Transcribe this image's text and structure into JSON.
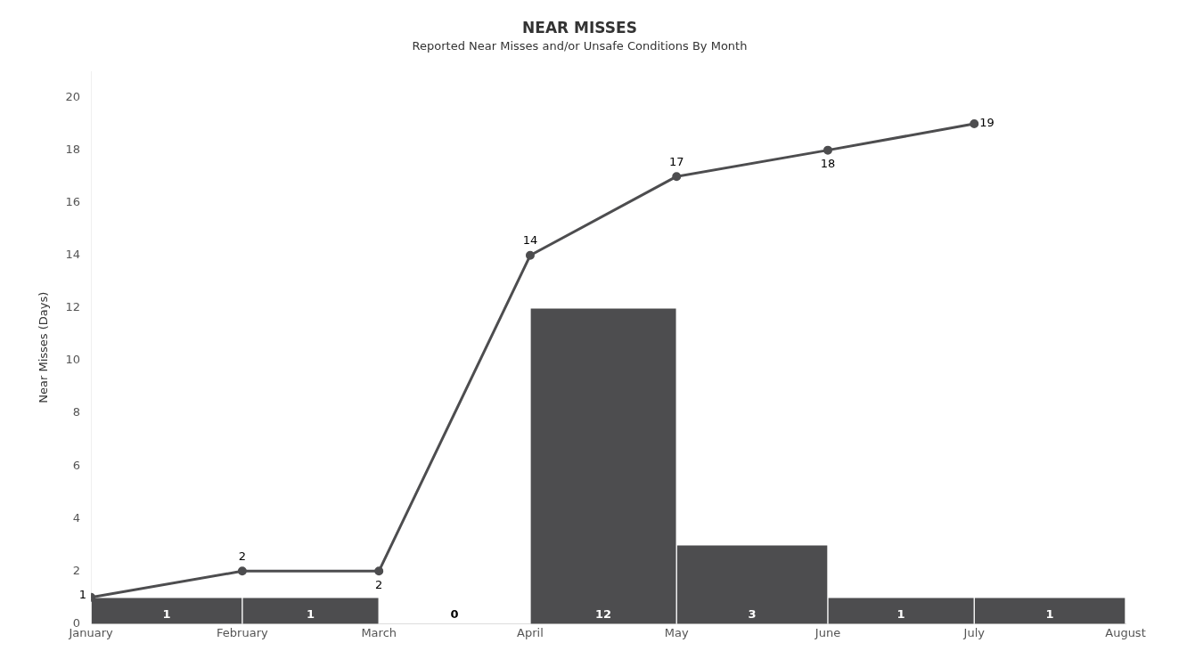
{
  "chart_data": {
    "type": "histogram",
    "title": "NEAR MISSES",
    "subtitle": "Reported Near Misses and/or Unsafe Conditions By Month",
    "ylabel": "Near Misses (Days)",
    "series": [
      {
        "color": "#4d4d4f",
        "bins": [
          "--01-01",
          "--02-01",
          "--03-01",
          "--04-01",
          "--05-01",
          "--06-01",
          "--07-01",
          "--08-01"
        ],
        "values": [
          1,
          1,
          0,
          12,
          3,
          1,
          1
        ]
      },
      {
        "type": "line",
        "color": "#4d4d4f",
        "x": [
          "--01-01",
          "--02-01",
          "--03-01",
          "--04-01",
          "--05-01",
          "--06-01",
          "--07-01"
        ],
        "values": [
          1,
          2,
          2,
          14,
          17,
          18,
          19
        ]
      }
    ],
    "xlim": [
      "--01-01",
      "--08-01"
    ],
    "xticks": [
      {
        "value": "--01-01",
        "label": "January"
      },
      {
        "value": "--02-01",
        "label": "February"
      },
      {
        "value": "--03-01",
        "label": "March"
      },
      {
        "value": "--04-01",
        "label": "April"
      },
      {
        "value": "--05-01",
        "label": "May"
      },
      {
        "value": "--06-01",
        "label": "June"
      },
      {
        "value": "--07-01",
        "label": "July"
      },
      {
        "value": "--08-01",
        "label": "August"
      }
    ],
    "ylim": [
      0,
      21
    ],
    "yticks": [
      0,
      2,
      4,
      6,
      8,
      10,
      12,
      14,
      16,
      18,
      20
    ],
    "grid": false,
    "legend": false,
    "marker": "circle",
    "line_style": "solid",
    "data_labels": true
  }
}
